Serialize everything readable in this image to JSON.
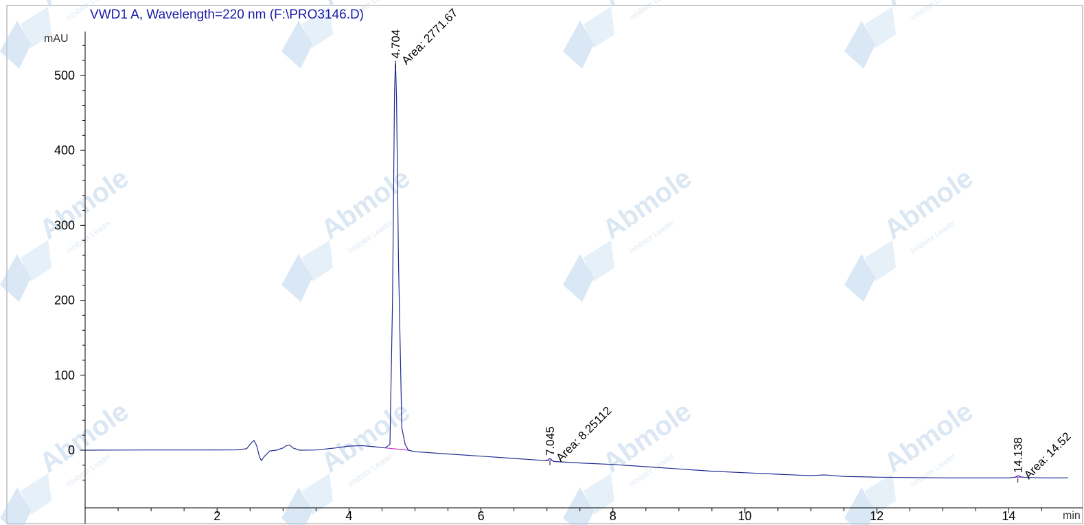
{
  "chart_data": {
    "type": "line",
    "title": "VWD1 A, Wavelength=220 nm (F:\\PRO3146.D)",
    "ylabel": "mAU",
    "xlabel": "min",
    "xlim": [
      0.0,
      14.9
    ],
    "ylim": [
      -48,
      555
    ],
    "x_ticks": [
      2,
      4,
      6,
      8,
      10,
      12,
      14
    ],
    "y_ticks": [
      0,
      100,
      200,
      300,
      400,
      500
    ],
    "grid": false,
    "series": [
      {
        "color": "#1f2a8f",
        "points": [
          [
            0.0,
            0
          ],
          [
            0.5,
            0.2
          ],
          [
            1.0,
            0.3
          ],
          [
            1.5,
            0.3
          ],
          [
            2.0,
            0.4
          ],
          [
            2.3,
            0.5
          ],
          [
            2.45,
            2
          ],
          [
            2.52,
            10
          ],
          [
            2.56,
            13
          ],
          [
            2.6,
            6
          ],
          [
            2.64,
            -8
          ],
          [
            2.67,
            -14
          ],
          [
            2.72,
            -8
          ],
          [
            2.8,
            -1
          ],
          [
            2.9,
            0
          ],
          [
            3.0,
            3
          ],
          [
            3.05,
            6
          ],
          [
            3.1,
            7
          ],
          [
            3.15,
            3
          ],
          [
            3.25,
            0
          ],
          [
            3.5,
            0.3
          ],
          [
            3.8,
            3
          ],
          [
            4.0,
            5.5
          ],
          [
            4.2,
            6
          ],
          [
            4.4,
            4.5
          ],
          [
            4.55,
            3
          ],
          [
            4.62,
            8
          ],
          [
            4.66,
            200
          ],
          [
            4.69,
            480
          ],
          [
            4.704,
            519
          ],
          [
            4.72,
            470
          ],
          [
            4.75,
            250
          ],
          [
            4.8,
            30
          ],
          [
            4.85,
            8
          ],
          [
            4.9,
            0
          ],
          [
            5.0,
            -2
          ],
          [
            5.5,
            -5
          ],
          [
            6.0,
            -8
          ],
          [
            6.5,
            -11
          ],
          [
            7.0,
            -14
          ],
          [
            7.045,
            -11
          ],
          [
            7.1,
            -15
          ],
          [
            7.5,
            -17
          ],
          [
            8.0,
            -19
          ],
          [
            8.5,
            -22
          ],
          [
            9.0,
            -25
          ],
          [
            9.5,
            -28
          ],
          [
            10.0,
            -30
          ],
          [
            10.5,
            -32
          ],
          [
            11.0,
            -34
          ],
          [
            11.2,
            -33
          ],
          [
            11.5,
            -35
          ],
          [
            12.0,
            -36
          ],
          [
            12.5,
            -36.5
          ],
          [
            13.0,
            -37
          ],
          [
            13.5,
            -37
          ],
          [
            14.0,
            -37
          ],
          [
            14.1,
            -36
          ],
          [
            14.138,
            -34
          ],
          [
            14.2,
            -36
          ],
          [
            14.5,
            -37
          ],
          [
            14.9,
            -37
          ]
        ]
      }
    ],
    "baselines": [
      {
        "color": "#cc33cc",
        "points": [
          [
            4.55,
            3
          ],
          [
            4.9,
            0
          ]
        ]
      },
      {
        "color": "#cc33cc",
        "points": [
          [
            6.98,
            -13
          ],
          [
            7.1,
            -14
          ]
        ]
      },
      {
        "color": "#cc33cc",
        "points": [
          [
            14.08,
            -36
          ],
          [
            14.22,
            -36
          ]
        ]
      }
    ],
    "peak_labels": [
      {
        "x": 4.704,
        "y": 519,
        "rt_text": "4.704",
        "area_text": "Area: 2771.67"
      },
      {
        "x": 7.045,
        "y": -11,
        "rt_text": "7.045",
        "area_text": "Area: 8.25112"
      },
      {
        "x": 14.138,
        "y": -34,
        "rt_text": "14.138",
        "area_text": "Area: 14.52"
      }
    ]
  },
  "watermark": {
    "brand": "Abmole",
    "tagline": "Inhibitor Leader",
    "colors": [
      "#bcd6ee",
      "#d2e3f3"
    ]
  }
}
